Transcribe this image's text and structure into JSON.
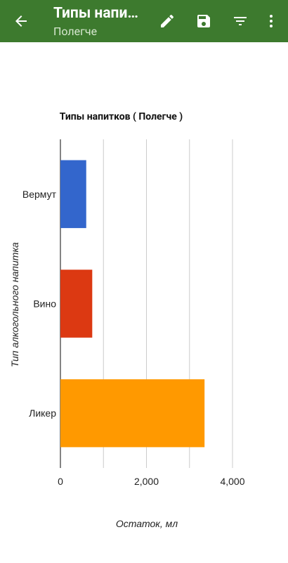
{
  "app_bar": {
    "title": "Типы напи…",
    "subtitle": "Полегче",
    "back_icon": "arrow-left-icon",
    "actions": [
      {
        "name": "edit-button",
        "icon": "pencil-icon"
      },
      {
        "name": "save-button",
        "icon": "floppy-disk-icon"
      },
      {
        "name": "filter-button",
        "icon": "filter-icon"
      },
      {
        "name": "more-button",
        "icon": "more-vertical-icon"
      }
    ],
    "color": "#3d7a2e"
  },
  "chart_data": {
    "type": "bar",
    "orientation": "horizontal",
    "title": "Типы напитков ( Полегче )",
    "xlabel": "Остаток, мл",
    "ylabel": "Тип алкогольного напитка",
    "categories": [
      "Вермут",
      "Вино",
      "Ликер"
    ],
    "values": [
      600,
      740,
      3350
    ],
    "colors": [
      "#3366cc",
      "#dc3912",
      "#ff9900"
    ],
    "xlim": [
      0,
      4000
    ],
    "xticks": [
      0,
      2000,
      4000
    ],
    "xtick_labels": [
      "0",
      "2,000",
      "4,000"
    ],
    "grid": true
  }
}
